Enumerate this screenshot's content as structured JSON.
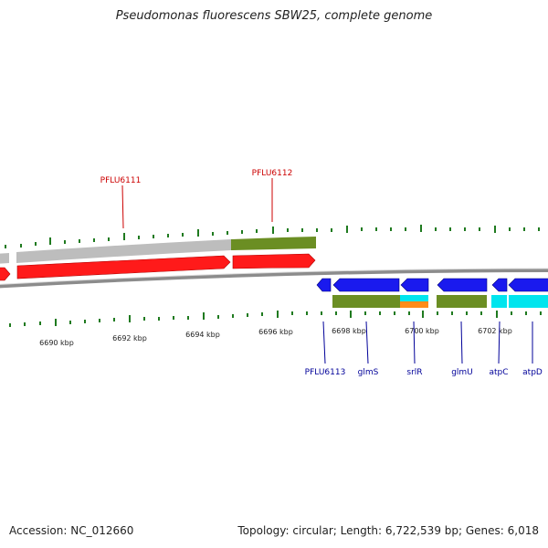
{
  "title": "Pseudomonas fluorescens SBW25, complete genome",
  "footer": {
    "accession": "Accession: NC_012660",
    "summary": "Topology: circular; Length: 6,722,539 bp; Genes: 6,018"
  },
  "scale_labels": [
    "6690 kbp",
    "6692 kbp",
    "6694 kbp",
    "6696 kbp",
    "6698 kbp",
    "6700 kbp",
    "6702 kbp"
  ],
  "genes": [
    {
      "label": "PFLU6111",
      "strand": "forward",
      "color": "#cc0000"
    },
    {
      "label": "PFLU6112",
      "strand": "forward",
      "color": "#cc0000"
    },
    {
      "label": "PFLU6113",
      "strand": "reverse",
      "color": "#000099"
    },
    {
      "label": "glmS",
      "strand": "reverse",
      "color": "#000099"
    },
    {
      "label": "srlR",
      "strand": "reverse",
      "color": "#000099"
    },
    {
      "label": "glmU",
      "strand": "reverse",
      "color": "#000099"
    },
    {
      "label": "atpC",
      "strand": "reverse",
      "color": "#000099"
    },
    {
      "label": "atpD",
      "strand": "reverse",
      "color": "#000099"
    }
  ],
  "colors": {
    "forward_gene": "#ff1a1a",
    "reverse_gene": "#1a1aee",
    "cog_gray": "#bdbdbd",
    "cog_green": "#6b8e23",
    "cog_cyan": "#00e5ee",
    "cog_orange": "#ff8c1a",
    "tick": "#1f7a1f",
    "backbone": "#8c8c8c"
  }
}
